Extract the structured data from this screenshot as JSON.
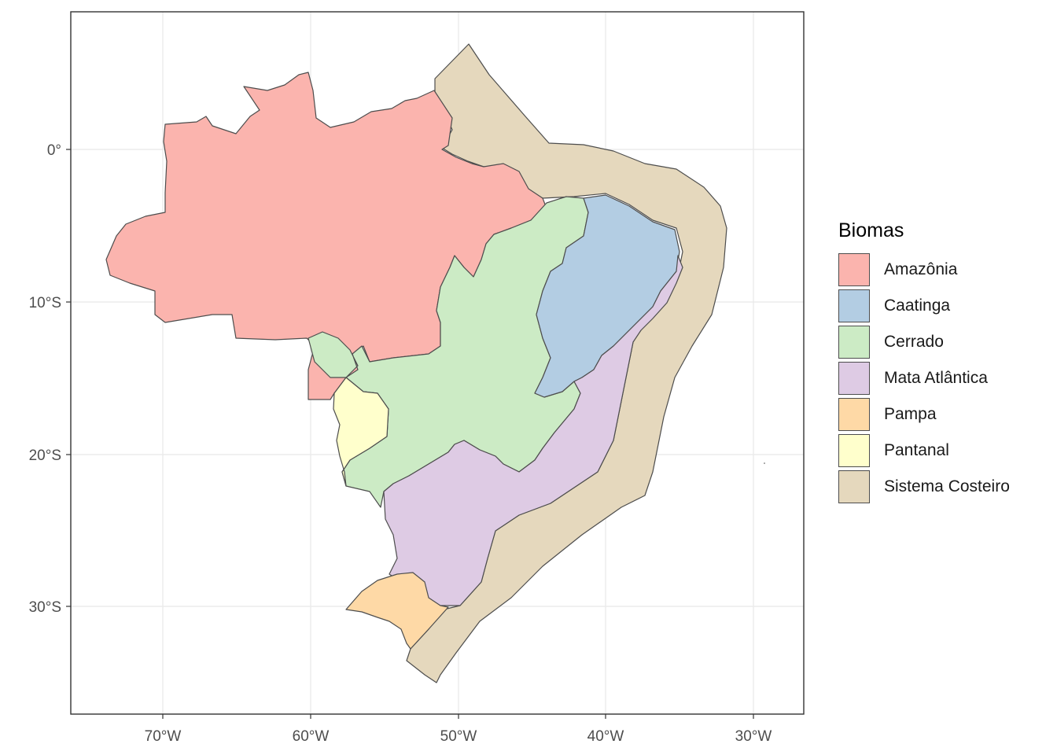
{
  "map": {
    "axes": {
      "x_ticks": [
        "70°W",
        "60°W",
        "50°W",
        "40°W",
        "30°W"
      ],
      "y_ticks": [
        "0°",
        "10°S",
        "20°S",
        "30°S"
      ],
      "lon_values": [
        -70,
        -60,
        -50,
        -40,
        -30
      ],
      "lat_values": [
        0,
        -10,
        -20,
        -30
      ]
    },
    "legend": {
      "title": "Biomas",
      "items": [
        {
          "label": "Amazônia",
          "color": "#fbb4ae"
        },
        {
          "label": "Caatinga",
          "color": "#b3cde3"
        },
        {
          "label": "Cerrado",
          "color": "#ccebc5"
        },
        {
          "label": "Mata Atlântica",
          "color": "#decbe4"
        },
        {
          "label": "Pampa",
          "color": "#fed9a6"
        },
        {
          "label": "Pantanal",
          "color": "#ffffcc"
        },
        {
          "label": "Sistema Costeiro",
          "color": "#e5d8bd"
        }
      ]
    },
    "colors": {
      "border": "#4d4d4d",
      "grid": "#ebebeb",
      "panel_border": "#333333"
    }
  }
}
